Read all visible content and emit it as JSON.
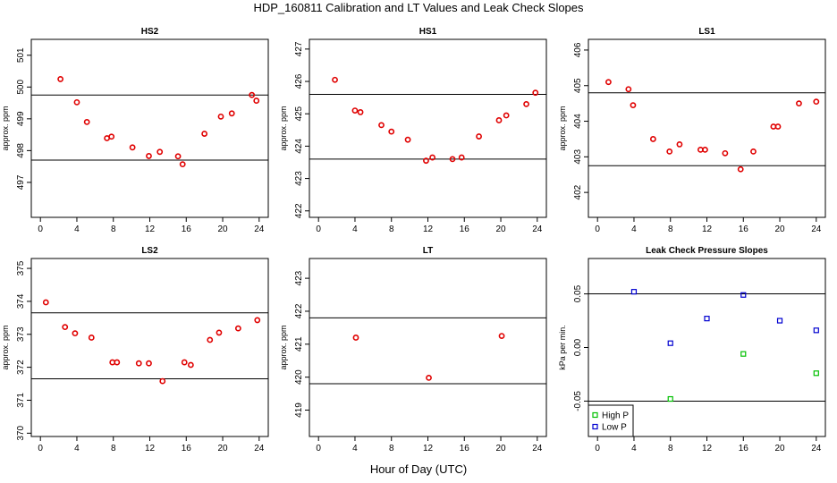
{
  "title": "HDP_160811  Calibration and LT Values and Leak Check Slopes",
  "xlabel": "Hour of Day (UTC)",
  "chart_data": [
    {
      "type": "scatter",
      "title": "HS2",
      "ylabel": "approx. ppm",
      "xlim": [
        -1,
        25
      ],
      "ylim": [
        495.9,
        501.5
      ],
      "xticks": [
        0,
        4,
        8,
        12,
        16,
        20,
        24
      ],
      "yticks": [
        497,
        498,
        499,
        500,
        501
      ],
      "hlines": [
        499.75,
        497.7
      ],
      "marker": "circle",
      "color": "#e00000",
      "x": [
        2.2,
        4.0,
        5.1,
        7.3,
        7.8,
        10.1,
        11.9,
        13.1,
        15.1,
        15.6,
        18.0,
        19.8,
        21.0,
        23.2,
        23.7
      ],
      "y": [
        500.25,
        499.52,
        498.9,
        498.39,
        498.44,
        498.1,
        497.83,
        497.96,
        497.82,
        497.57,
        498.53,
        499.07,
        499.17,
        499.75,
        499.57
      ]
    },
    {
      "type": "scatter",
      "title": "HS1",
      "ylabel": "approx. ppm",
      "xlim": [
        -1,
        25
      ],
      "ylim": [
        421.8,
        427.3
      ],
      "xticks": [
        0,
        4,
        8,
        12,
        16,
        20,
        24
      ],
      "yticks": [
        422,
        423,
        424,
        425,
        426,
        427
      ],
      "hlines": [
        425.6,
        423.6
      ],
      "marker": "circle",
      "color": "#e00000",
      "x": [
        1.8,
        4.0,
        4.6,
        6.9,
        8.0,
        9.8,
        11.8,
        12.5,
        14.7,
        15.7,
        17.6,
        19.8,
        20.6,
        22.8,
        23.8
      ],
      "y": [
        426.05,
        425.1,
        425.05,
        424.65,
        424.45,
        424.2,
        423.55,
        423.65,
        423.6,
        423.65,
        424.3,
        424.8,
        424.95,
        425.3,
        425.65
      ]
    },
    {
      "type": "scatter",
      "title": "LS1",
      "ylabel": "approx. ppm",
      "xlim": [
        -1,
        25
      ],
      "ylim": [
        401.3,
        406.3
      ],
      "xticks": [
        0,
        4,
        8,
        12,
        16,
        20,
        24
      ],
      "yticks": [
        402,
        403,
        404,
        405,
        406
      ],
      "hlines": [
        404.8,
        402.75
      ],
      "marker": "circle",
      "color": "#e00000",
      "x": [
        1.2,
        3.4,
        3.9,
        6.1,
        7.9,
        9.0,
        11.3,
        11.8,
        14.0,
        15.7,
        17.1,
        19.3,
        19.8,
        22.1,
        24.0
      ],
      "y": [
        405.1,
        404.9,
        404.45,
        403.5,
        403.15,
        403.35,
        403.2,
        403.2,
        403.1,
        402.65,
        403.15,
        403.85,
        403.85,
        404.5,
        404.55
      ]
    },
    {
      "type": "scatter",
      "title": "LS2",
      "ylabel": "approx. ppm",
      "xlim": [
        -1,
        25
      ],
      "ylim": [
        369.9,
        375.3
      ],
      "xticks": [
        0,
        4,
        8,
        12,
        16,
        20,
        24
      ],
      "yticks": [
        370,
        371,
        372,
        373,
        374,
        375
      ],
      "hlines": [
        373.65,
        371.65
      ],
      "marker": "circle",
      "color": "#e00000",
      "x": [
        0.6,
        2.7,
        3.8,
        5.6,
        7.9,
        8.4,
        10.8,
        11.9,
        13.4,
        15.8,
        16.5,
        18.6,
        19.6,
        21.7,
        23.8
      ],
      "y": [
        373.97,
        373.22,
        373.03,
        372.9,
        372.15,
        372.15,
        372.12,
        372.12,
        371.58,
        372.15,
        372.07,
        372.83,
        373.05,
        373.18,
        373.43
      ]
    },
    {
      "type": "scatter",
      "title": "LT",
      "ylabel": "approx. ppm",
      "xlim": [
        -1,
        25
      ],
      "ylim": [
        418.2,
        423.6
      ],
      "xticks": [
        0,
        4,
        8,
        12,
        16,
        20,
        24
      ],
      "yticks": [
        419,
        420,
        421,
        422,
        423
      ],
      "hlines": [
        421.8,
        419.8
      ],
      "marker": "circle",
      "color": "#e00000",
      "x": [
        4.1,
        12.1,
        20.1
      ],
      "y": [
        421.2,
        419.98,
        421.25
      ]
    },
    {
      "type": "scatter",
      "title": "Leak Check Pressure Slopes",
      "ylabel": "kPa per min.",
      "xlim": [
        -1,
        25
      ],
      "ylim": [
        -0.083,
        0.083
      ],
      "xticks": [
        0,
        4,
        8,
        12,
        16,
        20,
        24
      ],
      "yticks": [
        -0.05,
        0.0,
        0.05
      ],
      "ytick_labels": [
        "-0.05",
        "0.00",
        "0.05"
      ],
      "hlines": [
        0.05,
        -0.05
      ],
      "marker": "square",
      "legend_position": "bottom-left",
      "series": [
        {
          "name": "High P",
          "color": "#00c000",
          "x": [
            8.0,
            16.0,
            24.0
          ],
          "y": [
            -0.048,
            -0.006,
            -0.024
          ]
        },
        {
          "name": "Low P",
          "color": "#0000d0",
          "x": [
            4.0,
            8.0,
            12.0,
            16.0,
            20.0,
            24.0
          ],
          "y": [
            0.052,
            0.004,
            0.027,
            0.049,
            0.025,
            0.016
          ]
        }
      ]
    }
  ]
}
